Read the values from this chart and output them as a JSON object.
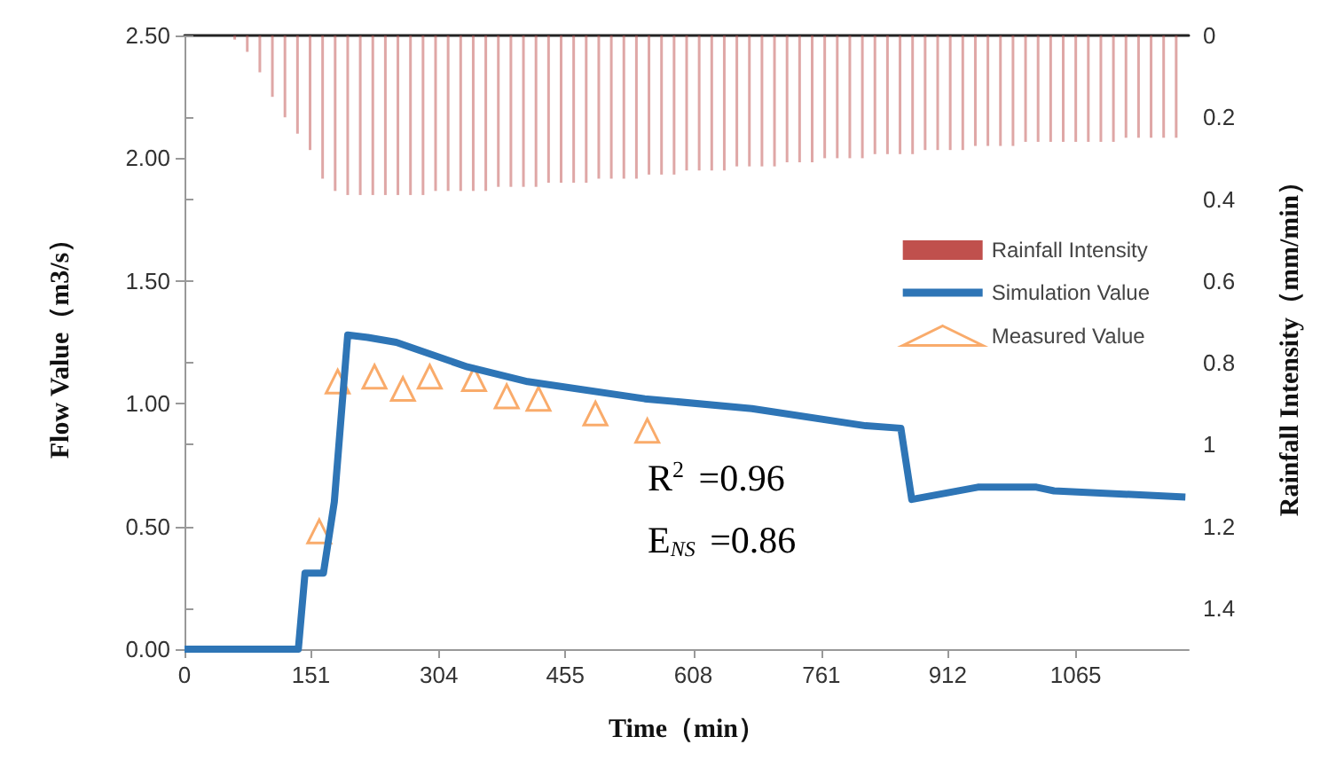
{
  "chart_data": {
    "type": "line",
    "xlabel": "Time（min）",
    "ylabel": "Flow Value（m3/s）",
    "y2label": "Rainfall Intensity（mm/min）",
    "xlim": [
      0,
      1200
    ],
    "xticks": [
      0,
      151,
      304,
      455,
      608,
      761,
      912,
      1065
    ],
    "ylim": [
      0,
      2.5
    ],
    "yticks": [
      {
        "value": 0,
        "label": "0.00"
      },
      {
        "value": 0.5,
        "label": "0.50"
      },
      {
        "value": 1,
        "label": "1.00"
      },
      {
        "value": 1.5,
        "label": "1.50"
      },
      {
        "value": 2,
        "label": "2.00"
      },
      {
        "value": 2.5,
        "label": "2.50"
      }
    ],
    "y2lim": [
      1.5,
      0
    ],
    "y2ticks": [
      0,
      0.2,
      0.4,
      0.6,
      0.8,
      1,
      1.2,
      1.4
    ],
    "grid": false,
    "legend": "right",
    "annotations": [
      "R$^{2}$ =0.96",
      "E$_{NS}$ =0.86"
    ],
    "series": [
      {
        "name": "Rainfall Intensity",
        "type": "bar",
        "axis": "y2",
        "color": "#c0504d",
        "x": [
          60,
          75,
          90,
          105,
          120,
          135,
          150,
          165,
          180,
          195,
          210,
          225,
          240,
          255,
          270,
          285,
          300,
          315,
          330,
          345,
          360,
          375,
          390,
          405,
          420,
          435,
          450,
          465,
          480,
          495,
          510,
          525,
          540,
          555,
          570,
          585,
          600,
          615,
          630,
          645,
          660,
          675,
          690,
          705,
          720,
          735,
          750,
          765,
          780,
          795,
          810,
          825,
          840,
          855,
          870,
          885,
          900,
          915,
          930,
          945,
          960,
          975,
          990,
          1005,
          1020,
          1035,
          1050,
          1065,
          1080,
          1095,
          1110,
          1125,
          1140,
          1155,
          1170,
          1185
        ],
        "values": [
          0.01,
          0.04,
          0.09,
          0.15,
          0.2,
          0.24,
          0.28,
          0.35,
          0.38,
          0.39,
          0.39,
          0.39,
          0.39,
          0.39,
          0.39,
          0.39,
          0.38,
          0.38,
          0.38,
          0.38,
          0.38,
          0.37,
          0.37,
          0.37,
          0.37,
          0.36,
          0.36,
          0.36,
          0.36,
          0.35,
          0.35,
          0.35,
          0.35,
          0.34,
          0.34,
          0.34,
          0.33,
          0.33,
          0.33,
          0.33,
          0.32,
          0.32,
          0.32,
          0.32,
          0.31,
          0.31,
          0.31,
          0.3,
          0.3,
          0.3,
          0.3,
          0.29,
          0.29,
          0.29,
          0.29,
          0.28,
          0.28,
          0.28,
          0.28,
          0.27,
          0.27,
          0.27,
          0.27,
          0.26,
          0.26,
          0.26,
          0.26,
          0.26,
          0.26,
          0.26,
          0.26,
          0.25,
          0.25,
          0.25,
          0.25,
          0.25
        ]
      },
      {
        "name": "Simulation Value",
        "color": "#2e75b6",
        "line_style": "solid",
        "marker": "none",
        "x": [
          0,
          136,
          144,
          147,
          166,
          179,
          195,
          219,
          253,
          338,
          410,
          550,
          678,
          814,
          856,
          869,
          948,
          1018,
          1039,
          1196
        ],
        "values": [
          0,
          0,
          0.31,
          0.31,
          0.31,
          0.6,
          1.28,
          1.27,
          1.25,
          1.15,
          1.09,
          1.02,
          0.98,
          0.91,
          0.9,
          0.61,
          0.66,
          0.66,
          0.645,
          0.62
        ]
      },
      {
        "name": "Measured Value",
        "type": "scatter",
        "color": "#f79646",
        "marker": "triangle",
        "x": [
          161,
          183,
          227,
          261,
          293,
          346,
          385,
          423,
          491,
          553
        ],
        "values": [
          0.48,
          1.09,
          1.11,
          1.06,
          1.11,
          1.1,
          1.03,
          1.02,
          0.96,
          0.89
        ]
      }
    ]
  }
}
